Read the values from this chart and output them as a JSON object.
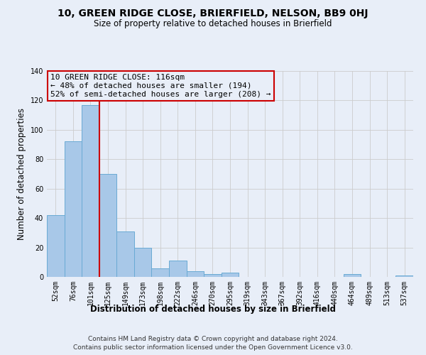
{
  "title1": "10, GREEN RIDGE CLOSE, BRIERFIELD, NELSON, BB9 0HJ",
  "title2": "Size of property relative to detached houses in Brierfield",
  "xlabel": "Distribution of detached houses by size in Brierfield",
  "ylabel": "Number of detached properties",
  "bar_labels": [
    "52sqm",
    "76sqm",
    "101sqm",
    "125sqm",
    "149sqm",
    "173sqm",
    "198sqm",
    "222sqm",
    "246sqm",
    "270sqm",
    "295sqm",
    "319sqm",
    "343sqm",
    "367sqm",
    "392sqm",
    "416sqm",
    "440sqm",
    "464sqm",
    "489sqm",
    "513sqm",
    "537sqm"
  ],
  "bar_values": [
    42,
    92,
    117,
    70,
    31,
    20,
    6,
    11,
    4,
    2,
    3,
    0,
    0,
    0,
    0,
    0,
    0,
    2,
    0,
    0,
    1
  ],
  "bar_color": "#a8c8e8",
  "bar_edge_color": "#6aaad4",
  "grid_color": "#cccccc",
  "bg_color": "#e8eef8",
  "vline_color": "#cc0000",
  "annotation_line1": "10 GREEN RIDGE CLOSE: 116sqm",
  "annotation_line2": "← 48% of detached houses are smaller (194)",
  "annotation_line3": "52% of semi-detached houses are larger (208) →",
  "annotation_box_color": "#cc0000",
  "footnote1": "Contains HM Land Registry data © Crown copyright and database right 2024.",
  "footnote2": "Contains public sector information licensed under the Open Government Licence v3.0.",
  "ylim": [
    0,
    140
  ],
  "yticks": [
    0,
    20,
    40,
    60,
    80,
    100,
    120,
    140
  ]
}
